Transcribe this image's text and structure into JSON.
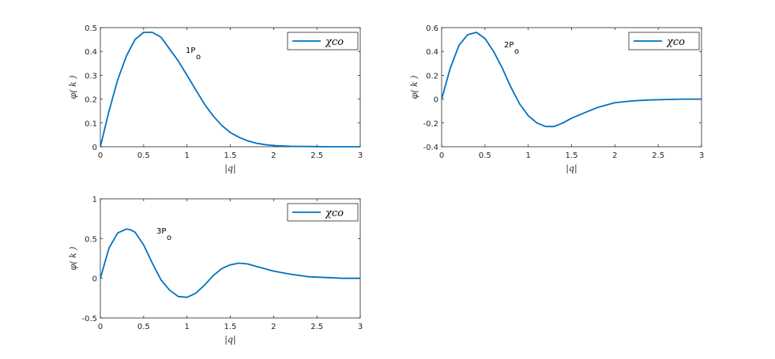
{
  "chart_data": [
    {
      "type": "line",
      "xlabel": "|q|",
      "ylabel": "φ( k )",
      "xlim": [
        0,
        3
      ],
      "ylim": [
        0,
        0.5
      ],
      "xticks": [
        "0",
        "0.5",
        "1",
        "1.5",
        "2",
        "2.5",
        "3"
      ],
      "yticks": [
        "0",
        "0.1",
        "0.2",
        "0.3",
        "0.4",
        "0.5"
      ],
      "annotation": {
        "main": "1P",
        "sub": "o"
      },
      "legend": "top-right",
      "series": [
        {
          "name": "χco",
          "color": "#0072BD",
          "x": [
            0,
            0.1,
            0.2,
            0.3,
            0.4,
            0.5,
            0.6,
            0.7,
            0.8,
            0.9,
            1.0,
            1.1,
            1.2,
            1.3,
            1.4,
            1.5,
            1.6,
            1.7,
            1.8,
            1.9,
            2.0,
            2.2,
            2.4,
            2.6,
            2.8,
            3.0
          ],
          "y": [
            0,
            0.15,
            0.28,
            0.38,
            0.45,
            0.48,
            0.48,
            0.46,
            0.41,
            0.36,
            0.3,
            0.24,
            0.18,
            0.13,
            0.09,
            0.06,
            0.04,
            0.025,
            0.015,
            0.009,
            0.005,
            0.002,
            0.001,
            0,
            0,
            0
          ]
        }
      ]
    },
    {
      "type": "line",
      "xlabel": "|q|",
      "ylabel": "φ( k )",
      "xlim": [
        0,
        3
      ],
      "ylim": [
        -0.4,
        0.6
      ],
      "xticks": [
        "0",
        "0.5",
        "1",
        "1.5",
        "2",
        "2.5",
        "3"
      ],
      "yticks": [
        "-0.4",
        "-0.2",
        "0",
        "0.2",
        "0.4",
        "0.6"
      ],
      "annotation": {
        "main": "2P",
        "sub": "o"
      },
      "legend": "top-right",
      "series": [
        {
          "name": "χco",
          "color": "#0072BD",
          "x": [
            0,
            0.1,
            0.2,
            0.3,
            0.4,
            0.5,
            0.6,
            0.7,
            0.8,
            0.9,
            1.0,
            1.1,
            1.2,
            1.3,
            1.4,
            1.5,
            1.6,
            1.7,
            1.8,
            1.9,
            2.0,
            2.2,
            2.4,
            2.6,
            2.8,
            3.0
          ],
          "y": [
            0,
            0.26,
            0.45,
            0.54,
            0.56,
            0.51,
            0.4,
            0.26,
            0.1,
            -0.04,
            -0.14,
            -0.2,
            -0.23,
            -0.23,
            -0.2,
            -0.16,
            -0.13,
            -0.1,
            -0.07,
            -0.05,
            -0.03,
            -0.015,
            -0.007,
            -0.003,
            0,
            0
          ]
        }
      ]
    },
    {
      "type": "line",
      "xlabel": "|q|",
      "ylabel": "φ( k )",
      "xlim": [
        0,
        3
      ],
      "ylim": [
        -0.5,
        1
      ],
      "xticks": [
        "0",
        "0.5",
        "1",
        "1.5",
        "2",
        "2.5",
        "3"
      ],
      "yticks": [
        "-0.5",
        "0",
        "0.5",
        "1"
      ],
      "annotation": {
        "main": "3P",
        "sub": "o"
      },
      "legend": "top-right",
      "series": [
        {
          "name": "χco",
          "color": "#0072BD",
          "x": [
            0,
            0.1,
            0.2,
            0.3,
            0.35,
            0.4,
            0.5,
            0.6,
            0.7,
            0.8,
            0.9,
            1.0,
            1.1,
            1.2,
            1.3,
            1.4,
            1.5,
            1.6,
            1.7,
            1.8,
            1.9,
            2.0,
            2.2,
            2.4,
            2.6,
            2.8,
            3.0
          ],
          "y": [
            0,
            0.38,
            0.57,
            0.62,
            0.61,
            0.58,
            0.42,
            0.19,
            -0.02,
            -0.15,
            -0.23,
            -0.24,
            -0.19,
            -0.09,
            0.03,
            0.12,
            0.17,
            0.19,
            0.18,
            0.15,
            0.12,
            0.09,
            0.05,
            0.02,
            0.01,
            0,
            0
          ]
        }
      ]
    }
  ]
}
